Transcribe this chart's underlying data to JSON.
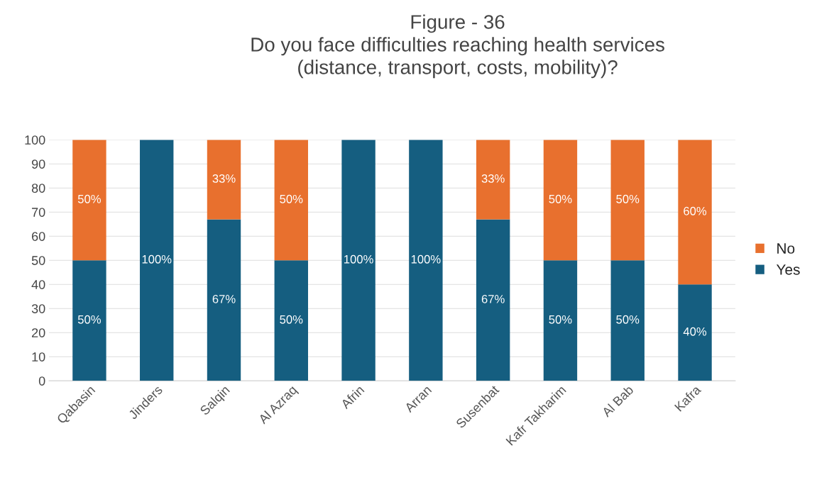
{
  "chart_data": {
    "type": "bar",
    "title": "Figure - 36\nDo you face difficulties reaching health services\n(distance, transport, costs, mobility)?",
    "categories": [
      "Qabasin",
      "Jinders",
      "Salqin",
      "Al Azraq",
      "Afrin",
      "Arran",
      "Susenbat",
      "Kafr Takharim",
      "Al Bab",
      "Kafra"
    ],
    "stacked": true,
    "series": [
      {
        "name": "Yes",
        "color": "#155e80",
        "values": [
          50,
          100,
          67,
          50,
          100,
          100,
          67,
          50,
          50,
          40
        ],
        "value_labels": [
          "50%",
          "100%",
          "67%",
          "50%",
          "100%",
          "100%",
          "67%",
          "50%",
          "50%",
          "40%"
        ]
      },
      {
        "name": "No",
        "color": "#e8702e",
        "values": [
          50,
          0,
          33,
          50,
          0,
          0,
          33,
          50,
          50,
          60
        ],
        "value_labels": [
          "50%",
          null,
          "33%",
          "50%",
          null,
          null,
          "33%",
          "50%",
          "50%",
          "60%"
        ]
      }
    ],
    "ylim": [
      0,
      100
    ],
    "yticks": [
      0,
      10,
      20,
      30,
      40,
      50,
      60,
      70,
      80,
      90,
      100
    ],
    "grid": "y",
    "legend": "right"
  }
}
